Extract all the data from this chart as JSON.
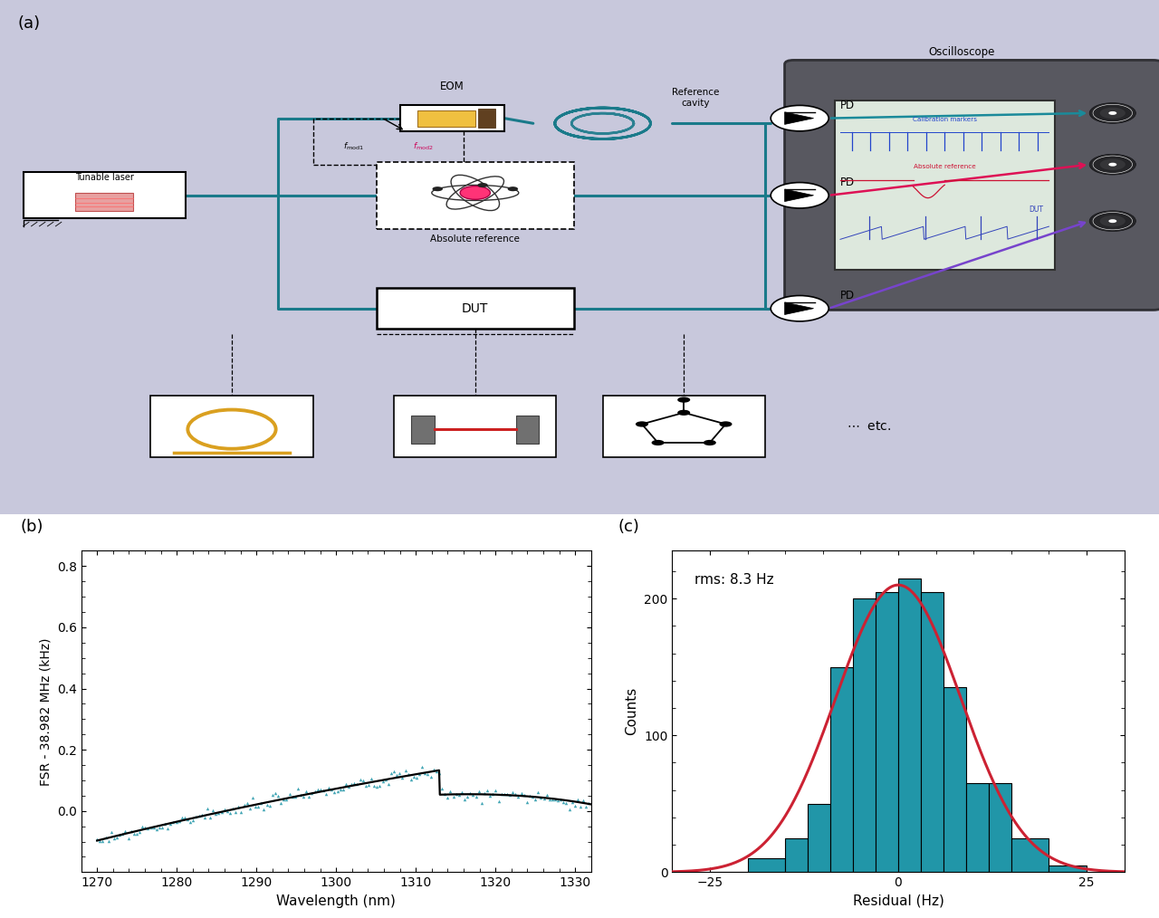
{
  "panel_b": {
    "xlabel": "Wavelength (nm)",
    "ylabel": "FSR - 38.982 MHz (kHz)",
    "xlim": [
      1268,
      1332
    ],
    "ylim": [
      -0.2,
      0.85
    ],
    "xticks": [
      1270,
      1280,
      1290,
      1300,
      1310,
      1320,
      1330
    ],
    "yticks": [
      0.0,
      0.2,
      0.4,
      0.6,
      0.8
    ],
    "data_color": "#2196A8",
    "fit_color": "#000000",
    "label": "(b)"
  },
  "panel_c": {
    "xlabel": "Residual (Hz)",
    "ylabel": "Counts",
    "xlim": [
      -30,
      30
    ],
    "ylim": [
      0,
      235
    ],
    "xticks": [
      -25,
      0,
      25
    ],
    "yticks": [
      0,
      100,
      200
    ],
    "bar_color": "#2196A8",
    "fit_color": "#cc2233",
    "rms_text": "rms: 8.3 Hz",
    "label": "(c)",
    "bar_edges": [
      -25,
      -20,
      -15,
      -12,
      -9,
      -6,
      -3,
      0,
      3,
      6,
      9,
      12,
      15,
      20,
      25
    ],
    "bar_heights": [
      0,
      10,
      25,
      50,
      150,
      200,
      205,
      215,
      205,
      135,
      65,
      65,
      25,
      5
    ]
  },
  "panel_a": {
    "label": "(a)",
    "bg_color": "#C8C8DC",
    "teal": "#1A7A8A",
    "teal_dark": "#0F5A68"
  }
}
